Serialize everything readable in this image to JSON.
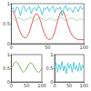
{
  "chart_data": [
    {
      "type": "line",
      "x": [
        0,
        2.5,
        5,
        7.5,
        10,
        12.5,
        15,
        17.5,
        20,
        22.5,
        25,
        27.5,
        30,
        32.5,
        35,
        37.5,
        40,
        42.5,
        45,
        47.5,
        50,
        52.5,
        55,
        57.5,
        60,
        62.5,
        65,
        67.5,
        70,
        72.5,
        75,
        77.5,
        80,
        82.5,
        85,
        87.5,
        90,
        92.5,
        95,
        97.5,
        100
      ],
      "xlim": [
        0,
        100
      ],
      "xticks": [
        0,
        50,
        100
      ],
      "ylim": [
        0,
        1
      ],
      "yticks": [
        0,
        0.5,
        1
      ],
      "grid": false,
      "series": [
        {
          "color": "#e03030",
          "values": [
            0.85,
            0.8,
            0.7,
            0.55,
            0.4,
            0.28,
            0.2,
            0.15,
            0.15,
            0.2,
            0.3,
            0.45,
            0.6,
            0.72,
            0.75,
            0.7,
            0.58,
            0.42,
            0.28,
            0.18,
            0.12,
            0.1,
            0.12,
            0.18,
            0.3,
            0.48,
            0.65,
            0.78,
            0.82,
            0.78,
            0.65,
            0.5,
            0.35,
            0.25,
            0.18,
            0.14,
            0.12,
            0.1,
            0.1,
            0.1,
            0.1
          ]
        },
        {
          "color": "#30c0d0",
          "values": [
            0.85,
            0.9,
            0.78,
            0.92,
            0.88,
            0.7,
            0.9,
            0.95,
            0.8,
            0.86,
            0.92,
            0.75,
            0.88,
            0.9,
            0.82,
            0.95,
            0.87,
            0.72,
            0.9,
            0.85,
            0.93,
            0.8,
            0.88,
            0.94,
            0.78,
            0.9,
            0.86,
            0.92,
            0.7,
            0.88,
            0.95,
            0.82,
            0.9,
            0.85,
            0.78,
            0.92,
            0.88,
            0.8,
            0.94,
            0.86,
            0.9
          ]
        },
        {
          "color": "#90d090",
          "values": [
            0.6,
            0.62,
            0.58,
            0.6,
            0.65,
            0.63,
            0.6,
            0.58,
            0.6,
            0.62,
            0.66,
            0.64,
            0.6,
            0.57,
            0.6,
            0.63,
            0.65,
            0.62,
            0.6,
            0.58,
            0.6,
            0.62,
            0.64,
            0.6,
            0.58,
            0.6,
            0.63,
            0.66,
            0.64,
            0.6,
            0.58,
            0.6,
            0.62,
            0.65,
            0.63,
            0.6,
            0.58,
            0.6,
            0.62,
            0.6,
            0.6
          ]
        }
      ]
    },
    {
      "type": "line",
      "x": [
        0,
        5,
        10,
        15,
        20,
        25,
        30,
        35,
        40,
        45,
        50,
        55,
        60,
        65,
        70,
        75,
        80,
        85,
        90,
        95,
        100
      ],
      "xlim": [
        0,
        100
      ],
      "xticks": [
        0,
        50,
        100
      ],
      "ylim": [
        0,
        1
      ],
      "yticks": [
        0,
        0.5,
        1
      ],
      "grid": false,
      "series": [
        {
          "color": "#6a9a3a",
          "values": [
            0.5,
            0.6,
            0.7,
            0.75,
            0.7,
            0.6,
            0.5,
            0.4,
            0.35,
            0.4,
            0.5,
            0.6,
            0.68,
            0.7,
            0.65,
            0.55,
            0.45,
            0.38,
            0.35,
            0.4,
            0.5
          ]
        }
      ]
    },
    {
      "type": "line",
      "x": [
        0,
        5,
        10,
        15,
        20,
        25,
        30,
        35,
        40,
        45,
        50,
        55,
        60,
        65,
        70,
        75,
        80,
        85,
        90,
        95,
        100
      ],
      "xlim": [
        0,
        100
      ],
      "xticks": [
        0,
        50,
        100
      ],
      "ylim": [
        0,
        1
      ],
      "yticks": [
        0,
        0.5,
        1
      ],
      "grid": false,
      "series": [
        {
          "color": "#30c0d0",
          "values": [
            0.5,
            0.7,
            0.35,
            0.65,
            0.45,
            0.75,
            0.4,
            0.6,
            0.3,
            0.7,
            0.5,
            0.65,
            0.35,
            0.72,
            0.45,
            0.6,
            0.38,
            0.7,
            0.42,
            0.62,
            0.5
          ]
        }
      ]
    }
  ]
}
